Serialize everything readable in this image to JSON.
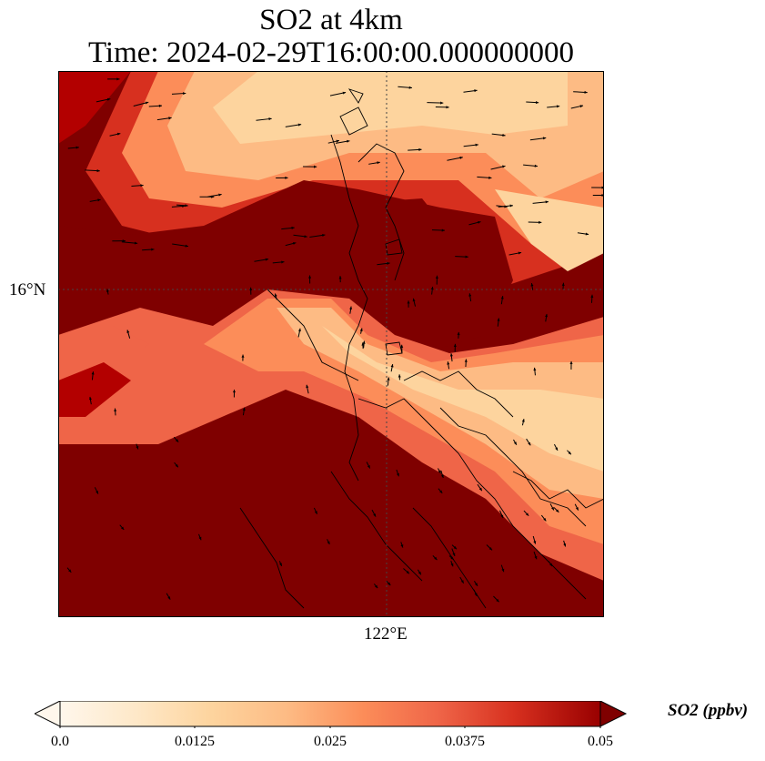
{
  "title": {
    "line1": "SO2 at 4km",
    "line2": "Time: 2024-02-29T16:00:00.000000000"
  },
  "map": {
    "lat_label": "16°N",
    "lon_label": "122°E",
    "field": "SO2 concentration at 4km",
    "gridlines": "dotted",
    "overlay": "wind vectors (arrows)",
    "colors": {
      "low": "#fff5eb",
      "mid": "#f08c5a",
      "high": "#7f0000",
      "coastline": "#000000"
    }
  },
  "colorbar": {
    "label": "SO2 (ppbv)",
    "ticks": [
      "0.0",
      "0.0125",
      "0.025",
      "0.0375",
      "0.05"
    ],
    "range": [
      0.0,
      0.05
    ],
    "colormap": "OrRd",
    "extend": "both"
  }
}
